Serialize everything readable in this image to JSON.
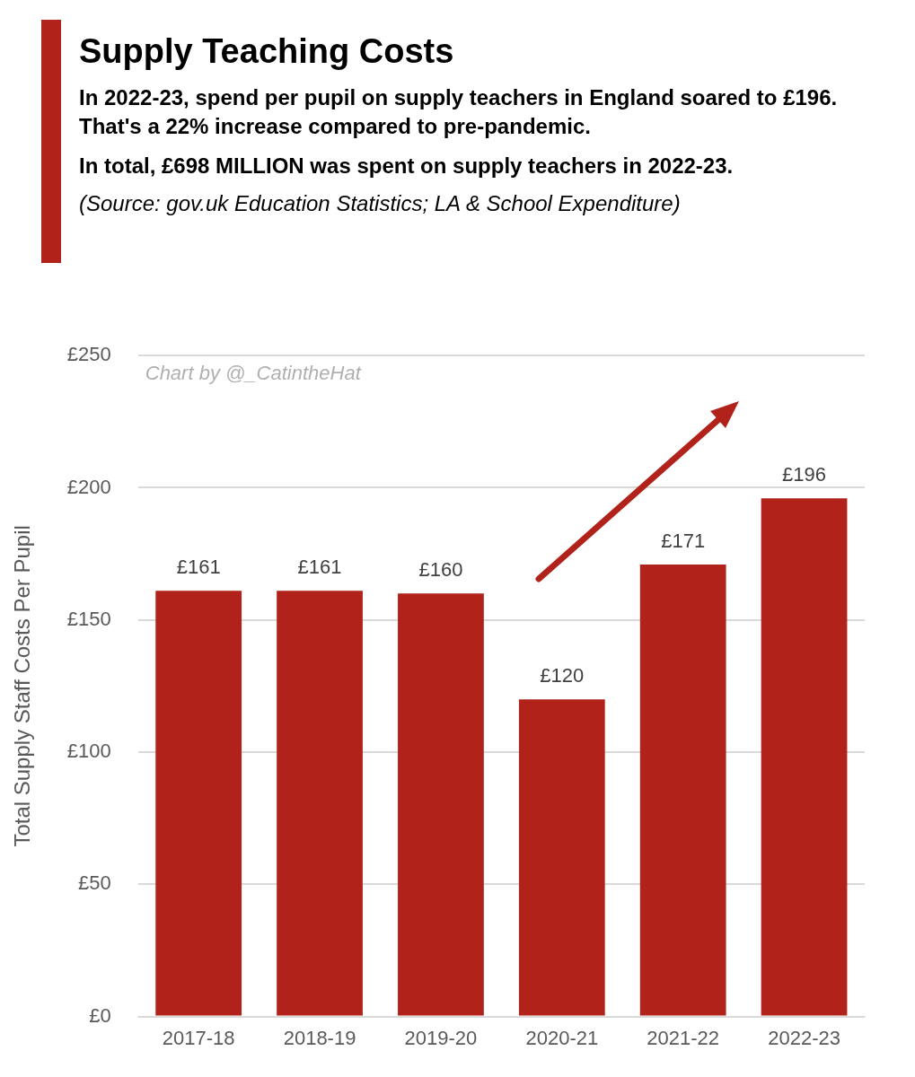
{
  "chart_data": {
    "type": "bar",
    "title": "Supply Teaching Costs",
    "subtitle": "In 2022-23, spend per pupil on supply teachers in England soared to £196. That's a 22% increase compared to pre-pandemic.",
    "annotations": [
      "In total, £698 MILLION was spent on supply teachers in 2022-23.",
      "(Source: gov.uk Education Statistics; LA & School Expenditure)",
      "Chart by @_CatintheHat"
    ],
    "ylabel": "Total Supply Staff Costs Per Pupil",
    "categories": [
      "2017-18",
      "2018-19",
      "2019-20",
      "2020-21",
      "2021-22",
      "2022-23"
    ],
    "values": [
      161,
      161,
      160,
      120,
      171,
      196
    ],
    "value_labels": [
      "£161",
      "£161",
      "£160",
      "£120",
      "£171",
      "£196"
    ],
    "color": "#b0221a",
    "ylim": [
      0,
      250
    ],
    "yticks": [
      {
        "value": 0,
        "label": "£0"
      },
      {
        "value": 50,
        "label": "£50"
      },
      {
        "value": 100,
        "label": "£100"
      },
      {
        "value": 150,
        "label": "£150"
      },
      {
        "value": 200,
        "label": "£200"
      },
      {
        "value": 250,
        "label": "£250"
      }
    ],
    "grid": "y",
    "legend": false
  }
}
